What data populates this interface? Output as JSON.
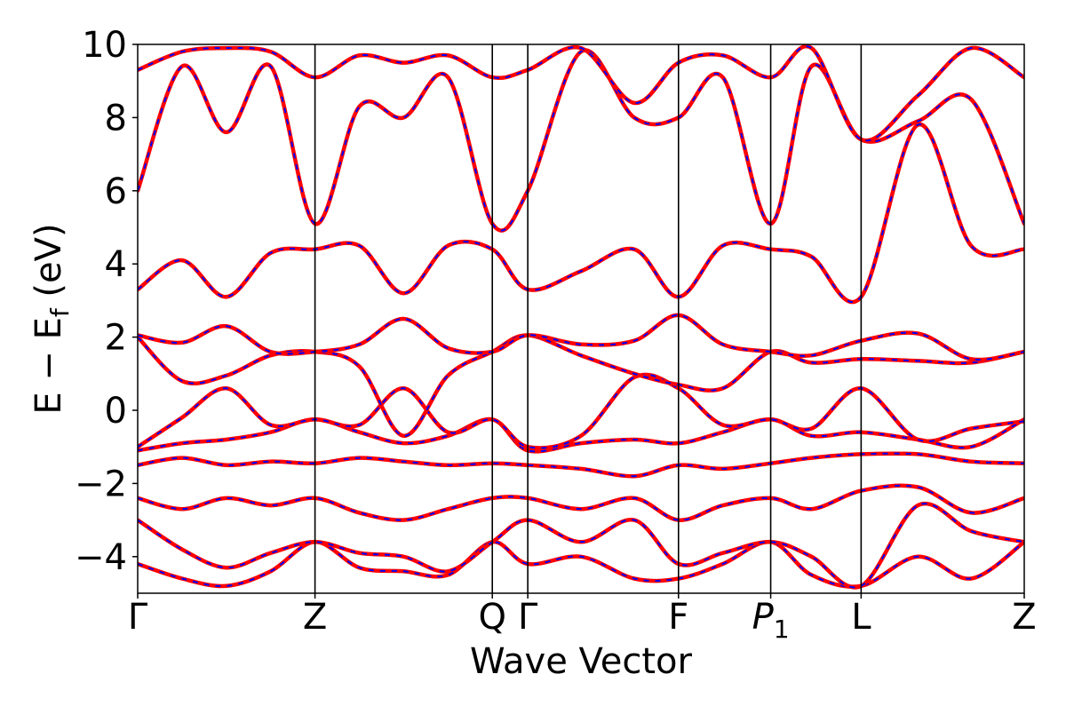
{
  "chart_data": {
    "type": "line",
    "title": "",
    "xlabel": "Wave Vector",
    "ylabel": "E − E_f (eV)",
    "ylabel_parts": {
      "main": "E − E",
      "sub": "f",
      "unit": " (eV)"
    },
    "ylim": [
      -5,
      10
    ],
    "yticks": [
      -4,
      -2,
      0,
      2,
      4,
      6,
      8,
      10
    ],
    "ytick_labels": [
      "−4",
      "−2",
      "0",
      "2",
      "4",
      "6",
      "8",
      "10"
    ],
    "xlim": [
      0,
      5.0
    ],
    "high_symmetry_points": [
      {
        "label": "Γ",
        "x": 0.0
      },
      {
        "label": "Z",
        "x": 1.0
      },
      {
        "label": "Q",
        "x": 2.0
      },
      {
        "label": "Γ",
        "x": 2.2
      },
      {
        "label": "F",
        "x": 3.05
      },
      {
        "label": "P",
        "sub": "1",
        "italic": true,
        "x": 3.57
      },
      {
        "label": "L",
        "x": 4.08
      },
      {
        "label": "Z",
        "x": 5.0
      }
    ],
    "grid": false,
    "legend": "none",
    "colors": {
      "series_a": "#ff0000",
      "series_b": "#0000ff",
      "axis": "#000000",
      "background": "#ffffff"
    },
    "line_styles": {
      "series_a": "solid",
      "series_b": "dashed"
    },
    "bands": [
      {
        "x": [
          0,
          0.25,
          0.5,
          0.75,
          1.0,
          1.25,
          1.5,
          1.75,
          2.0,
          2.2,
          2.5,
          2.8,
          3.05,
          3.3,
          3.57,
          3.8,
          4.08,
          4.4,
          4.7,
          5.0
        ],
        "y": [
          -4.2,
          -4.6,
          -4.8,
          -4.4,
          -3.6,
          -4.3,
          -4.4,
          -4.5,
          -3.6,
          -4.2,
          -4.0,
          -4.6,
          -4.6,
          -4.2,
          -3.6,
          -4.5,
          -4.8,
          -4.0,
          -4.6,
          -3.6
        ]
      },
      {
        "x": [
          0,
          0.25,
          0.5,
          0.75,
          1.0,
          1.25,
          1.5,
          1.75,
          2.0,
          2.2,
          2.5,
          2.8,
          3.05,
          3.3,
          3.57,
          3.8,
          4.08,
          4.4,
          4.7,
          5.0
        ],
        "y": [
          -3.0,
          -3.8,
          -4.3,
          -3.9,
          -3.6,
          -3.9,
          -4.0,
          -4.4,
          -3.6,
          -3.0,
          -3.6,
          -3.0,
          -4.2,
          -3.9,
          -3.6,
          -4.0,
          -4.8,
          -2.6,
          -3.3,
          -3.6
        ]
      },
      {
        "x": [
          0,
          0.25,
          0.5,
          0.75,
          1.0,
          1.25,
          1.5,
          1.75,
          2.0,
          2.2,
          2.5,
          2.8,
          3.05,
          3.3,
          3.57,
          3.8,
          4.08,
          4.4,
          4.7,
          5.0
        ],
        "y": [
          -2.4,
          -2.7,
          -2.4,
          -2.6,
          -2.4,
          -2.8,
          -3.0,
          -2.7,
          -2.4,
          -2.4,
          -2.7,
          -2.4,
          -3.0,
          -2.6,
          -2.4,
          -2.7,
          -2.2,
          -2.1,
          -2.8,
          -2.4
        ]
      },
      {
        "x": [
          0,
          0.25,
          0.5,
          0.75,
          1.0,
          1.25,
          1.5,
          1.75,
          2.0,
          2.2,
          2.5,
          2.8,
          3.05,
          3.3,
          3.57,
          3.8,
          4.08,
          4.4,
          4.7,
          5.0
        ],
        "y": [
          -1.5,
          -1.3,
          -1.5,
          -1.4,
          -1.45,
          -1.3,
          -1.4,
          -1.5,
          -1.45,
          -1.5,
          -1.6,
          -1.8,
          -1.5,
          -1.6,
          -1.45,
          -1.3,
          -1.2,
          -1.2,
          -1.4,
          -1.45
        ]
      },
      {
        "x": [
          0,
          0.25,
          0.5,
          0.75,
          1.0,
          1.25,
          1.5,
          1.75,
          2.0,
          2.2,
          2.5,
          2.8,
          3.05,
          3.3,
          3.57,
          3.8,
          4.08,
          4.4,
          4.7,
          5.0
        ],
        "y": [
          -1.1,
          -0.9,
          -0.8,
          -0.6,
          -0.25,
          -0.6,
          -0.9,
          -0.7,
          -0.25,
          -1.1,
          -0.9,
          -0.8,
          -0.9,
          -0.6,
          -0.25,
          -0.7,
          -0.6,
          -0.8,
          -1.0,
          -0.25
        ]
      },
      {
        "x": [
          0,
          0.25,
          0.5,
          0.75,
          1.0,
          1.25,
          1.5,
          1.75,
          2.0,
          2.2,
          2.5,
          2.8,
          3.05,
          3.3,
          3.57,
          3.8,
          4.08,
          4.4,
          4.7,
          5.0
        ],
        "y": [
          -1.0,
          -0.2,
          0.6,
          -0.4,
          -0.25,
          -0.4,
          0.6,
          -0.6,
          -0.25,
          -1.0,
          -0.7,
          0.9,
          0.6,
          -0.4,
          -0.25,
          -0.5,
          0.6,
          -0.8,
          -0.5,
          -0.3
        ]
      },
      {
        "x": [
          0,
          0.25,
          0.5,
          0.75,
          1.0,
          1.25,
          1.5,
          1.75,
          2.0,
          2.2,
          2.5,
          2.8,
          3.05,
          3.3,
          3.57,
          3.8,
          4.08,
          4.4,
          4.7,
          5.0
        ],
        "y": [
          2.0,
          0.8,
          0.95,
          1.5,
          1.6,
          1.2,
          -0.7,
          0.95,
          1.6,
          2.05,
          1.5,
          1.0,
          0.7,
          0.6,
          1.6,
          1.3,
          1.4,
          1.35,
          1.3,
          1.6
        ]
      },
      {
        "x": [
          0,
          0.25,
          0.5,
          0.75,
          1.0,
          1.25,
          1.5,
          1.75,
          2.0,
          2.2,
          2.5,
          2.8,
          3.05,
          3.3,
          3.57,
          3.8,
          4.08,
          4.4,
          4.7,
          5.0
        ],
        "y": [
          2.05,
          1.85,
          2.3,
          1.6,
          1.6,
          1.8,
          2.5,
          1.7,
          1.6,
          2.05,
          1.8,
          1.9,
          2.6,
          1.8,
          1.6,
          1.5,
          1.9,
          2.1,
          1.4,
          1.6
        ]
      },
      {
        "x": [
          0,
          0.25,
          0.5,
          0.75,
          1.0,
          1.25,
          1.5,
          1.75,
          2.0,
          2.2,
          2.5,
          2.8,
          3.05,
          3.3,
          3.57,
          3.8,
          4.08,
          4.4,
          4.7,
          5.0
        ],
        "y": [
          3.3,
          4.1,
          3.1,
          4.3,
          4.4,
          4.5,
          3.2,
          4.5,
          4.4,
          3.3,
          3.8,
          4.4,
          3.1,
          4.5,
          4.4,
          4.2,
          3.1,
          7.8,
          4.5,
          4.4
        ]
      },
      {
        "x": [
          0,
          0.25,
          0.5,
          0.75,
          1.0,
          1.25,
          1.5,
          1.75,
          2.0,
          2.2,
          2.5,
          2.8,
          3.05,
          3.3,
          3.57,
          3.8,
          4.08,
          4.4,
          4.7,
          5.0
        ],
        "y": [
          6.0,
          9.4,
          7.6,
          9.4,
          5.1,
          8.3,
          8.0,
          9.1,
          5.1,
          6.0,
          9.8,
          8.0,
          8.0,
          9.1,
          5.1,
          9.4,
          7.4,
          7.9,
          8.5,
          5.1
        ]
      },
      {
        "x": [
          0,
          0.25,
          0.5,
          0.75,
          1.0,
          1.25,
          1.5,
          1.75,
          2.0,
          2.2,
          2.5,
          2.8,
          3.05,
          3.3,
          3.57,
          3.8,
          4.08,
          4.4,
          4.7,
          5.0
        ],
        "y": [
          9.3,
          9.8,
          9.9,
          9.8,
          9.1,
          9.7,
          9.5,
          9.7,
          9.1,
          9.3,
          9.9,
          8.4,
          9.5,
          9.7,
          9.1,
          9.9,
          7.4,
          8.6,
          9.9,
          9.1
        ]
      }
    ]
  }
}
